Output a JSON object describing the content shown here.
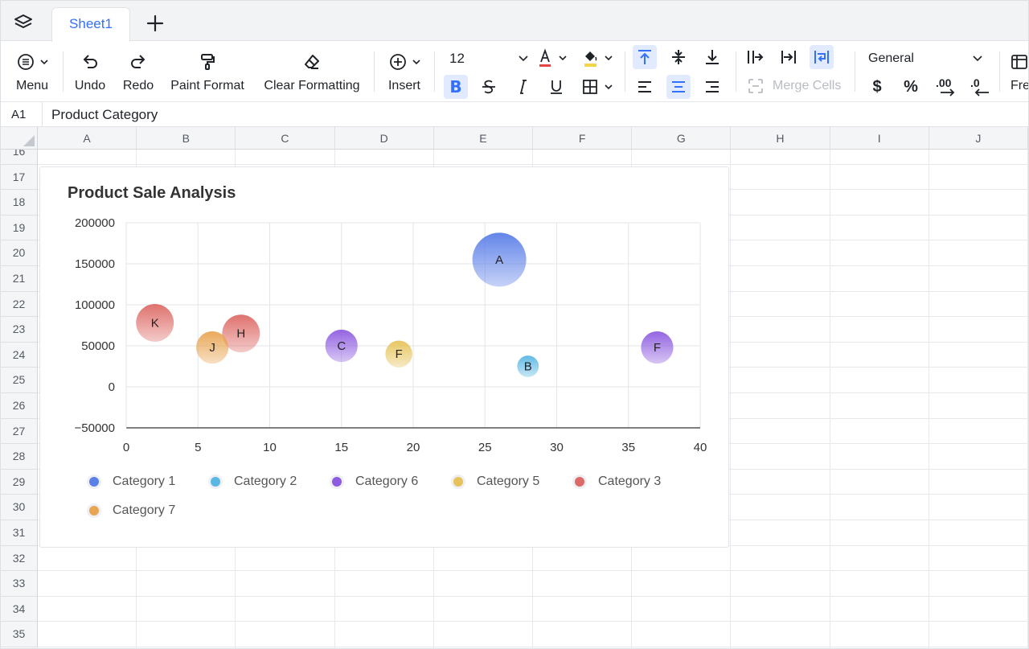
{
  "tabs": {
    "active": "Sheet1",
    "add_glyph": "+"
  },
  "toolbar": {
    "menu": "Menu",
    "undo": "Undo",
    "redo": "Redo",
    "paint_format": "Paint Format",
    "clear_formatting": "Clear Formatting",
    "insert": "Insert",
    "font_size": "12",
    "merge_cells": "Merge Cells",
    "number_format": "General",
    "freeze_partial": "Fre",
    "currency_glyph": "$",
    "percent_glyph": "%",
    "decimal_inc": ".00",
    "decimal_dec": ".0"
  },
  "formula_bar": {
    "cell_ref": "A1",
    "content": "Product Category"
  },
  "columns": [
    "A",
    "B",
    "C",
    "D",
    "E",
    "F",
    "G",
    "H",
    "I",
    "J"
  ],
  "rows": [
    "16",
    "17",
    "18",
    "19",
    "20",
    "21",
    "22",
    "23",
    "24",
    "25",
    "26",
    "27",
    "28",
    "29",
    "30",
    "31",
    "32",
    "33",
    "34",
    "35"
  ],
  "colors": {
    "accent": "#3370ff",
    "active_bg": "#e1eaff"
  },
  "chart_data": {
    "type": "bubble",
    "title": "Product Sale Analysis",
    "xlim": [
      0,
      40
    ],
    "ylim": [
      -50000,
      200000
    ],
    "x_ticks": [
      "0",
      "5",
      "10",
      "15",
      "20",
      "25",
      "30",
      "35",
      "40"
    ],
    "y_ticks": [
      "200000",
      "150000",
      "100000",
      "50000",
      "0",
      "−50000"
    ],
    "grid": true,
    "legend_position": "bottom",
    "series": [
      {
        "name": "Category 1",
        "color": "#5b7fe8",
        "points": [
          {
            "label": "A",
            "x": 26,
            "y": 155000,
            "size": 10
          }
        ]
      },
      {
        "name": "Category 2",
        "color": "#5ab7e3",
        "points": [
          {
            "label": "B",
            "x": 28,
            "y": 25000,
            "size": 4
          }
        ]
      },
      {
        "name": "Category 6",
        "color": "#8e5ce0",
        "points": [
          {
            "label": "C",
            "x": 15,
            "y": 50000,
            "size": 6
          },
          {
            "label": "F",
            "x": 37,
            "y": 48000,
            "size": 6
          }
        ]
      },
      {
        "name": "Category 5",
        "color": "#e6c35a",
        "points": [
          {
            "label": "F",
            "x": 19,
            "y": 40000,
            "size": 5
          }
        ]
      },
      {
        "name": "Category 3",
        "color": "#dd6a66",
        "points": [
          {
            "label": "K",
            "x": 2,
            "y": 78000,
            "size": 7
          },
          {
            "label": "H",
            "x": 8,
            "y": 65000,
            "size": 7
          }
        ]
      },
      {
        "name": "Category 7",
        "color": "#e8a552",
        "points": [
          {
            "label": "J",
            "x": 6,
            "y": 48000,
            "size": 6
          }
        ]
      }
    ]
  }
}
